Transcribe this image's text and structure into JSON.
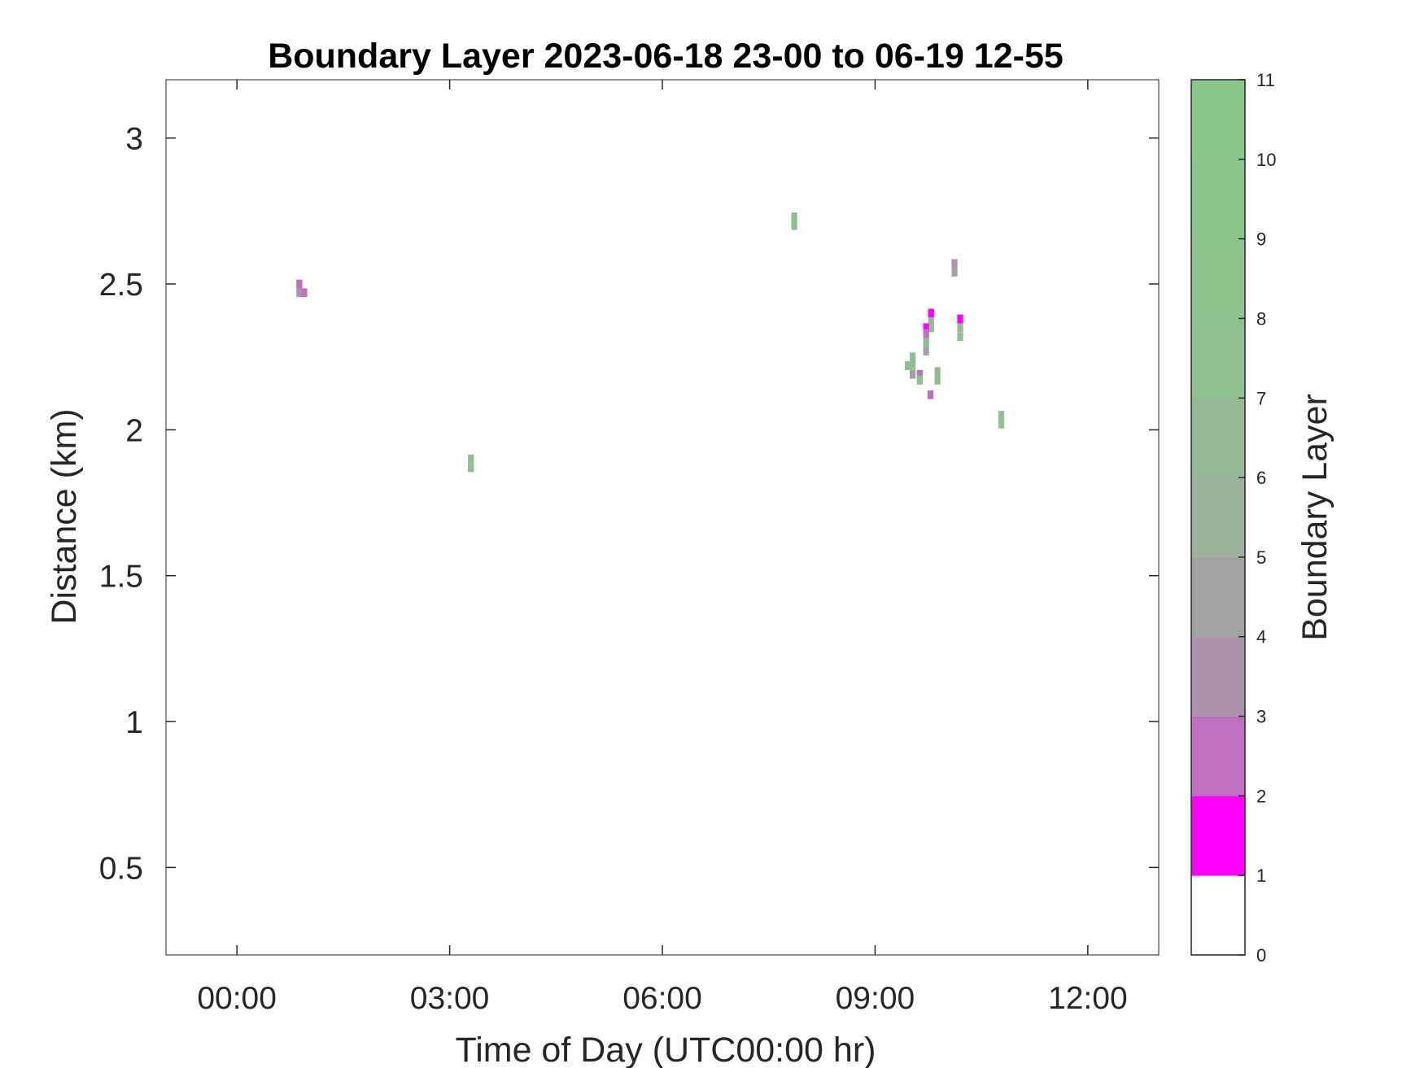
{
  "chart_data": {
    "type": "heatmap",
    "title": "Boundary Layer 2023-06-18 23-00 to 06-19 12-55",
    "xlabel": "Time of Day (UTC00:00 hr)",
    "ylabel": "Distance (km)",
    "xlim": [
      -1,
      13
    ],
    "ylim": [
      0.2,
      3.2
    ],
    "x_ticks": [
      0,
      3,
      6,
      9,
      12
    ],
    "x_tick_labels": [
      "00:00",
      "03:00",
      "06:00",
      "09:00",
      "12:00"
    ],
    "y_ticks": [
      0.5,
      1,
      1.5,
      2,
      2.5,
      3
    ],
    "y_tick_labels": [
      "0.5",
      "1",
      "1.5",
      "2",
      "2.5",
      "3"
    ],
    "grid": false,
    "colorbar": {
      "label": "Boundary Layer",
      "range": [
        0,
        11
      ],
      "ticks": [
        0,
        1,
        2,
        3,
        4,
        5,
        6,
        7,
        8,
        9,
        10,
        11
      ],
      "tick_labels": [
        "0",
        "1",
        "2",
        "3",
        "4",
        "5",
        "6",
        "7",
        "8",
        "9",
        "10",
        "11"
      ],
      "colors": [
        "#ffffff",
        "#ff00ff",
        "#c070c0",
        "#ac94ac",
        "#a0a3a0",
        "#9cb29c",
        "#94b994",
        "#90bf90",
        "#8ec38e",
        "#8cc58c",
        "#8ac78a"
      ]
    },
    "cell_size": {
      "dt_hours": 0.083,
      "dkm": 0.03
    },
    "cells": [
      {
        "t": 0.88,
        "d": 2.5,
        "v": 2
      },
      {
        "t": 0.88,
        "d": 2.47,
        "v": 3
      },
      {
        "t": 0.95,
        "d": 2.47,
        "v": 2
      },
      {
        "t": 3.3,
        "d": 1.9,
        "v": 7
      },
      {
        "t": 3.3,
        "d": 1.87,
        "v": 7
      },
      {
        "t": 7.86,
        "d": 2.73,
        "v": 7
      },
      {
        "t": 7.86,
        "d": 2.7,
        "v": 7
      },
      {
        "t": 10.12,
        "d": 2.57,
        "v": 3
      },
      {
        "t": 10.12,
        "d": 2.54,
        "v": 4
      },
      {
        "t": 9.79,
        "d": 2.4,
        "v": 1
      },
      {
        "t": 9.79,
        "d": 2.37,
        "v": 6
      },
      {
        "t": 9.79,
        "d": 2.35,
        "v": 7
      },
      {
        "t": 9.72,
        "d": 2.35,
        "v": 1
      },
      {
        "t": 9.72,
        "d": 2.33,
        "v": 2
      },
      {
        "t": 9.72,
        "d": 2.3,
        "v": 6
      },
      {
        "t": 9.72,
        "d": 2.27,
        "v": 4
      },
      {
        "t": 10.2,
        "d": 2.38,
        "v": 1
      },
      {
        "t": 10.2,
        "d": 2.35,
        "v": 6
      },
      {
        "t": 10.2,
        "d": 2.32,
        "v": 7
      },
      {
        "t": 9.53,
        "d": 2.25,
        "v": 7
      },
      {
        "t": 9.46,
        "d": 2.22,
        "v": 7
      },
      {
        "t": 9.53,
        "d": 2.22,
        "v": 6
      },
      {
        "t": 9.53,
        "d": 2.19,
        "v": 4
      },
      {
        "t": 9.63,
        "d": 2.19,
        "v": 2
      },
      {
        "t": 9.63,
        "d": 2.17,
        "v": 7
      },
      {
        "t": 9.88,
        "d": 2.2,
        "v": 6
      },
      {
        "t": 9.88,
        "d": 2.17,
        "v": 7
      },
      {
        "t": 9.78,
        "d": 2.12,
        "v": 2
      },
      {
        "t": 10.78,
        "d": 2.05,
        "v": 7
      },
      {
        "t": 10.78,
        "d": 2.02,
        "v": 7
      }
    ]
  }
}
